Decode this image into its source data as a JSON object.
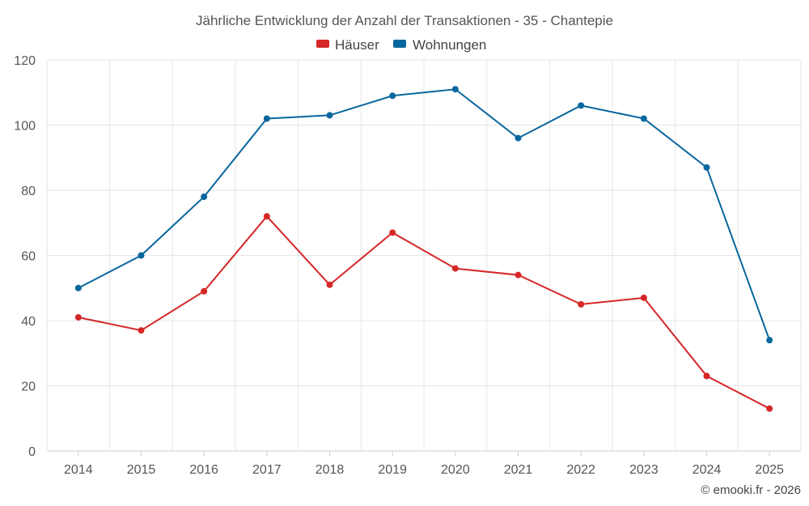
{
  "chart_data": {
    "type": "line",
    "title": "Jährliche Entwicklung der Anzahl der Transaktionen - 35 - Chantepie",
    "categories": [
      "2014",
      "2015",
      "2016",
      "2017",
      "2018",
      "2019",
      "2020",
      "2021",
      "2022",
      "2023",
      "2024",
      "2025"
    ],
    "ylim": [
      0,
      120
    ],
    "yticks": [
      0,
      20,
      40,
      60,
      80,
      100,
      120
    ],
    "grid": true,
    "legend_position": "top-center",
    "series": [
      {
        "name": "Häuser",
        "color": "#d62728",
        "values": [
          41,
          37,
          49,
          72,
          51,
          67,
          56,
          54,
          45,
          47,
          23,
          13
        ]
      },
      {
        "name": "Wohnungen",
        "color": "#08669e",
        "values": [
          50,
          60,
          78,
          102,
          103,
          109,
          111,
          96,
          106,
          102,
          87,
          34
        ]
      }
    ],
    "credit": "© emooki.fr - 2026"
  }
}
